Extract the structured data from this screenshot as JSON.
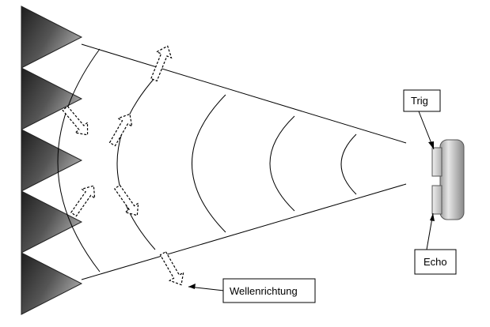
{
  "labels": {
    "trig": "Trig",
    "echo": "Echo",
    "wave_direction": "Wellenrichtung"
  },
  "colors": {
    "line": "#000000",
    "absorber_dark": "#3a3a3a",
    "absorber_light": "#9a9a9a",
    "sensor_body": "#c8c8c8"
  },
  "absorber_count": 5,
  "icons": [
    "triangle-absorber-icon",
    "dashed-arrow-icon",
    "ultrasonic-sensor-icon"
  ]
}
